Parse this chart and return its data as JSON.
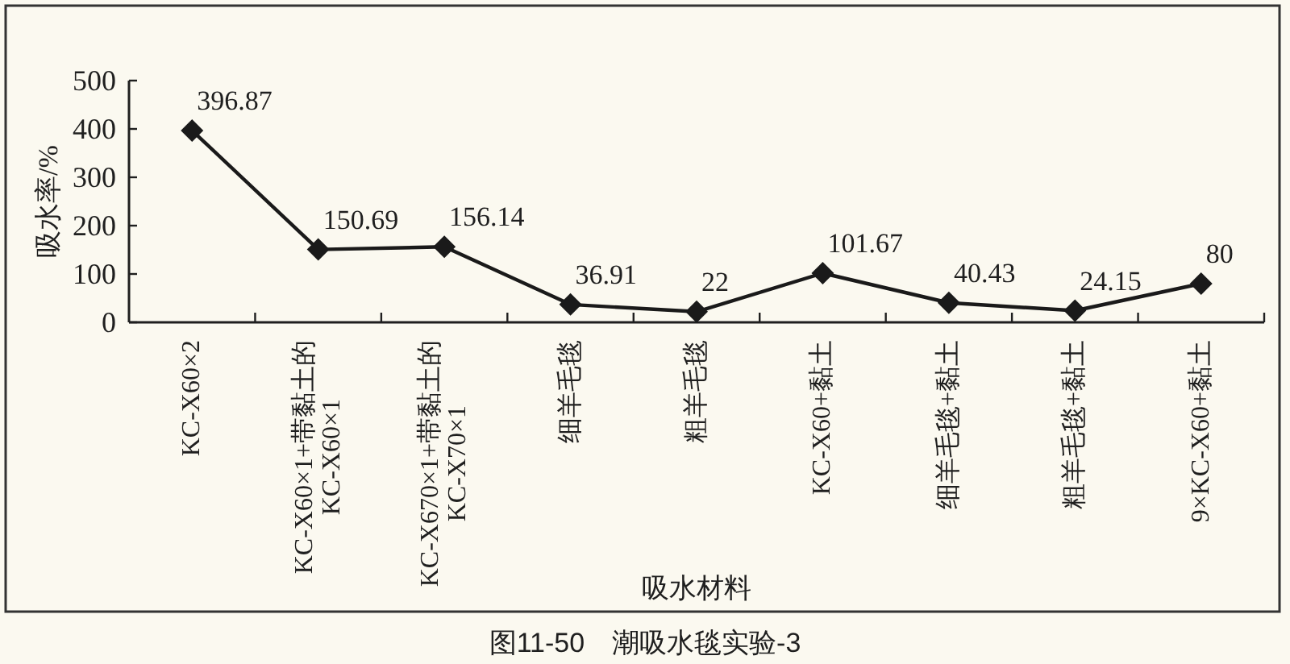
{
  "chart_data": {
    "type": "line",
    "xlabel": "吸水材料",
    "ylabel": "吸水率/%",
    "categories": [
      "KC-X60×2",
      "KC-X60×1+带黏土的\nKC-X60×1",
      "KC-X670×1+带黏土的\nKC-X70×1",
      "细羊毛毯",
      "粗羊毛毯",
      "KC-X60+黏土",
      "细羊毛毯+黏土",
      "粗羊毛毯+黏土",
      "9×KC-X60+黏土"
    ],
    "values": [
      396.87,
      150.69,
      156.14,
      36.91,
      22,
      101.67,
      40.43,
      24.15,
      80
    ],
    "color": "#1a1a1a",
    "marker": "diamond",
    "data_labels": true,
    "ylim": [
      0,
      500
    ],
    "yticks": [
      0,
      100,
      200,
      300,
      400,
      500
    ],
    "annotations": [
      "图11-50　潮吸水毯实验-3"
    ]
  }
}
